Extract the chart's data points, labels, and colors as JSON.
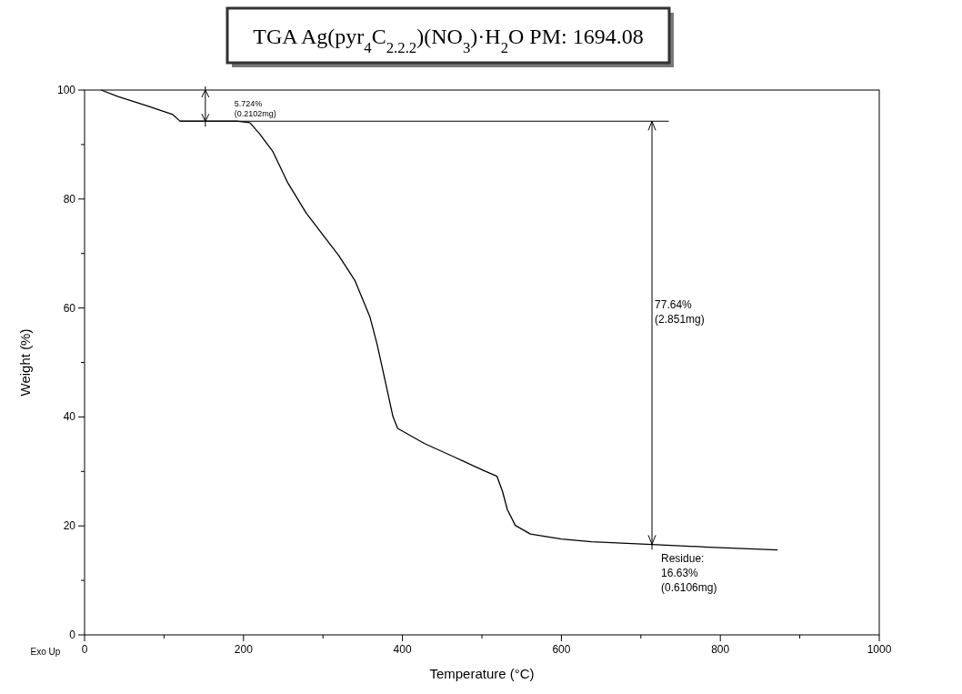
{
  "chart_data": {
    "type": "line",
    "title": "TGA  Ag(pyr$_{4}$C$_{2.2.2}$)(NO$_{3}$)·H$_{2}$O PM: 1694.08",
    "xlabel": "Temperature (°C)",
    "ylabel": "Weight (%)",
    "series": [
      {
        "color": "#000000",
        "x": [
          21,
          42,
          77,
          111,
          120,
          191,
          208,
          220,
          237,
          256,
          279,
          320,
          340,
          359,
          368,
          378,
          388,
          394,
          428,
          466,
          503,
          519,
          526,
          532,
          542,
          561,
          600,
          638,
          714,
          786,
          872
        ],
        "values": [
          100,
          98.8,
          97.2,
          95.5,
          94.3,
          94.3,
          94.0,
          92.0,
          88.7,
          82.9,
          77.4,
          69.6,
          65.1,
          58.4,
          53.4,
          46.8,
          40.1,
          37.9,
          35.1,
          32.6,
          30.1,
          29.1,
          26.3,
          23.0,
          20.1,
          18.5,
          17.6,
          17.1,
          16.6,
          16.1,
          15.6
        ]
      }
    ],
    "xlim": [
      0,
      1000
    ],
    "ylim": [
      0,
      100
    ],
    "xticks": [
      0,
      {
        "value": 100,
        "label": null
      },
      200,
      {
        "value": 300,
        "label": null
      },
      400,
      {
        "value": 500,
        "label": null
      },
      600,
      {
        "value": 700,
        "label": null
      },
      800,
      {
        "value": 900,
        "label": null
      },
      1000
    ],
    "yticks": [
      0,
      {
        "value": 10,
        "label": null
      },
      20,
      {
        "value": 30,
        "label": null
      },
      40,
      {
        "value": 50,
        "label": null
      },
      60,
      {
        "value": 70,
        "label": null
      },
      80,
      {
        "value": 90,
        "label": null
      },
      100
    ],
    "ref_lines": [
      {
        "axis": "y",
        "value": 94.28,
        "color": "#000000"
      }
    ],
    "annotations": [
      "5.724%\n(0.2102mg)",
      "77.64%\n(2.851mg)",
      {
        "text": "Residue:\n16.63%\n(0.6106mg)",
        "x": 714,
        "y": 16.63
      },
      "Exo Up"
    ],
    "grid": false,
    "marker": "none",
    "line_style": "solid"
  }
}
